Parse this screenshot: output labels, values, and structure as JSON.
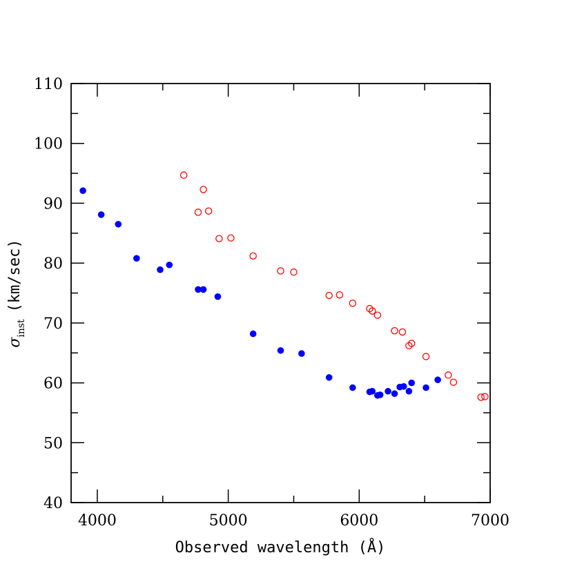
{
  "chart_data": {
    "type": "scatter",
    "xlabel": "Observed wavelength (Å)",
    "ylabel": {
      "symbol": "σ",
      "subscript": "inst",
      "units": "(km/sec)"
    },
    "xlim": [
      3800,
      7000
    ],
    "ylim": [
      40,
      110
    ],
    "x_ticks": [
      4000,
      5000,
      6000,
      7000
    ],
    "y_ticks": [
      40,
      50,
      60,
      70,
      80,
      90,
      100,
      110
    ],
    "grid": false,
    "series": [
      {
        "marker": "filled-circle",
        "color": "#0000ff",
        "points": [
          [
            3890,
            92.1
          ],
          [
            4030,
            88.1
          ],
          [
            4160,
            86.5
          ],
          [
            4300,
            80.8
          ],
          [
            4480,
            78.9
          ],
          [
            4550,
            79.7
          ],
          [
            4770,
            75.6
          ],
          [
            4810,
            75.6
          ],
          [
            4920,
            74.4
          ],
          [
            5190,
            68.2
          ],
          [
            5400,
            65.4
          ],
          [
            5560,
            64.9
          ],
          [
            5770,
            60.9
          ],
          [
            5950,
            59.2
          ],
          [
            6080,
            58.5
          ],
          [
            6100,
            58.6
          ],
          [
            6140,
            57.9
          ],
          [
            6160,
            58.0
          ],
          [
            6220,
            58.6
          ],
          [
            6270,
            58.2
          ],
          [
            6310,
            59.3
          ],
          [
            6340,
            59.4
          ],
          [
            6380,
            58.6
          ],
          [
            6400,
            60.0
          ],
          [
            6510,
            59.2
          ],
          [
            6600,
            60.5
          ]
        ]
      },
      {
        "marker": "open-circle",
        "color": "#ff0000",
        "points": [
          [
            4660,
            94.7
          ],
          [
            4770,
            88.5
          ],
          [
            4810,
            92.3
          ],
          [
            4850,
            88.7
          ],
          [
            4930,
            84.1
          ],
          [
            5020,
            84.2
          ],
          [
            5190,
            81.2
          ],
          [
            5400,
            78.7
          ],
          [
            5500,
            78.5
          ],
          [
            5770,
            74.6
          ],
          [
            5850,
            74.7
          ],
          [
            5950,
            73.3
          ],
          [
            6080,
            72.4
          ],
          [
            6100,
            72.0
          ],
          [
            6140,
            71.3
          ],
          [
            6270,
            68.7
          ],
          [
            6330,
            68.5
          ],
          [
            6380,
            66.2
          ],
          [
            6400,
            66.6
          ],
          [
            6510,
            64.4
          ],
          [
            6680,
            61.3
          ],
          [
            6720,
            60.1
          ],
          [
            6930,
            57.6
          ],
          [
            6960,
            57.7
          ]
        ]
      }
    ]
  }
}
